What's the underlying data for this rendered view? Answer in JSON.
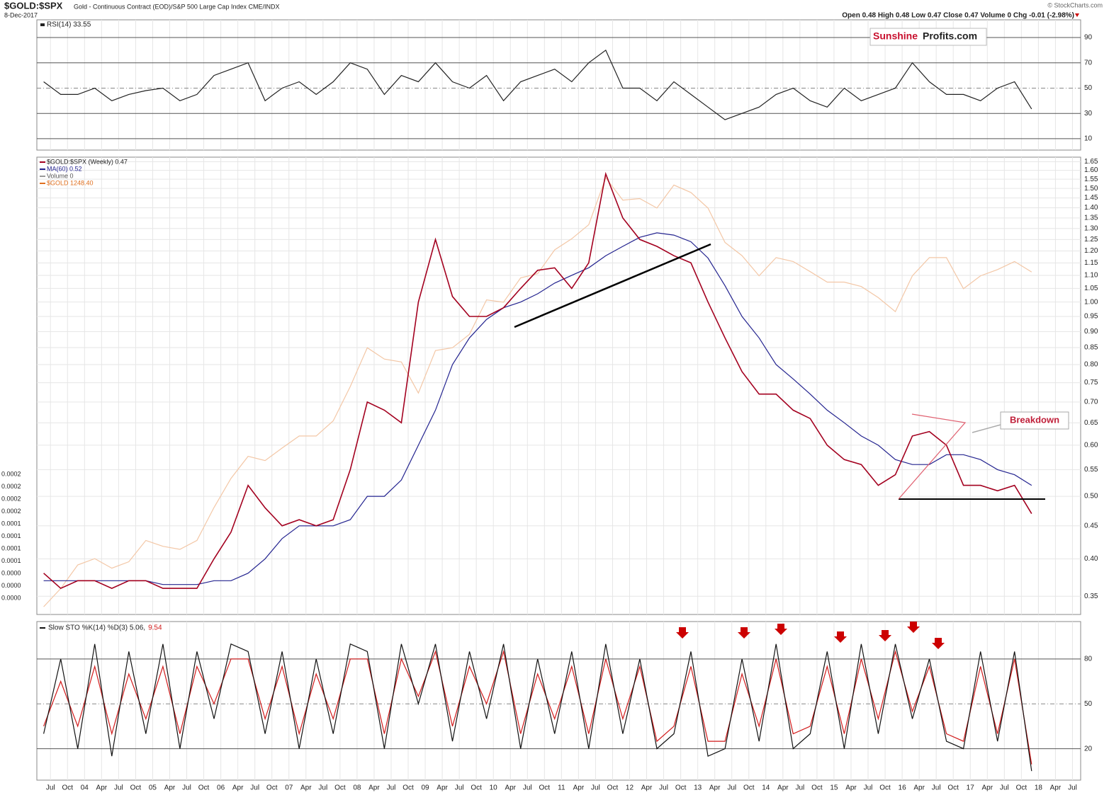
{
  "header": {
    "symbol": "$GOLD:$SPX",
    "description": "Gold - Continuous Contract (EOD)/S&P 500 Large Cap Index CME/INDX",
    "date": "8-Dec-2017",
    "quote": "Open 0.48 High 0.48 Low 0.47 Close 0.47 Volume 0 Chg -0.01 (-2.98%)",
    "credit": "© StockCharts.com",
    "logo": [
      "Sunshine",
      "Profits.com"
    ],
    "volume_scale_labels": [
      "0.0002",
      "0.0002",
      "0.0002",
      "0.0002",
      "0.0001",
      "0.0001",
      "0.0001",
      "0.0001",
      "0.0000",
      "0.0000",
      "0.0000"
    ]
  },
  "chart_data": [
    {
      "type": "line",
      "legend": "RSI(14) 33.55",
      "x": [
        2003.4,
        2003.65,
        2003.9,
        2004.15,
        2004.4,
        2004.65,
        2004.9,
        2005.15,
        2005.4,
        2005.65,
        2005.9,
        2006.15,
        2006.4,
        2006.65,
        2006.9,
        2007.15,
        2007.4,
        2007.65,
        2007.9,
        2008.15,
        2008.4,
        2008.65,
        2008.9,
        2009.15,
        2009.4,
        2009.65,
        2009.9,
        2010.15,
        2010.4,
        2010.65,
        2010.9,
        2011.15,
        2011.4,
        2011.65,
        2011.9,
        2012.15,
        2012.4,
        2012.65,
        2012.9,
        2013.15,
        2013.4,
        2013.65,
        2013.9,
        2014.15,
        2014.4,
        2014.65,
        2014.9,
        2015.15,
        2015.4,
        2015.65,
        2015.9,
        2016.15,
        2016.4,
        2016.65,
        2016.9,
        2017.15,
        2017.4,
        2017.65,
        2017.9
      ],
      "series": [
        {
          "color": "#222222",
          "values": [
            55,
            45,
            45,
            50,
            40,
            45,
            48,
            50,
            40,
            45,
            60,
            65,
            70,
            40,
            50,
            55,
            45,
            55,
            70,
            65,
            45,
            60,
            55,
            70,
            55,
            50,
            60,
            40,
            55,
            60,
            65,
            55,
            70,
            80,
            50,
            50,
            40,
            55,
            45,
            35,
            25,
            30,
            35,
            45,
            50,
            40,
            35,
            50,
            40,
            45,
            50,
            70,
            55,
            45,
            45,
            40,
            50,
            55,
            33.55
          ]
        }
      ],
      "ylim": [
        1,
        104
      ],
      "yticks": [
        10,
        30,
        50,
        70,
        90
      ]
    },
    {
      "type": "line",
      "ylog": true,
      "y2log": true,
      "legend_extra": "Volume 0",
      "x": [
        2003.4,
        2003.65,
        2003.9,
        2004.15,
        2004.4,
        2004.65,
        2004.9,
        2005.15,
        2005.4,
        2005.65,
        2005.9,
        2006.15,
        2006.4,
        2006.65,
        2006.9,
        2007.15,
        2007.4,
        2007.65,
        2007.9,
        2008.15,
        2008.4,
        2008.65,
        2008.9,
        2009.15,
        2009.4,
        2009.65,
        2009.9,
        2010.15,
        2010.4,
        2010.65,
        2010.9,
        2011.15,
        2011.4,
        2011.65,
        2011.9,
        2012.15,
        2012.4,
        2012.65,
        2012.9,
        2013.15,
        2013.4,
        2013.65,
        2013.9,
        2014.15,
        2014.4,
        2014.65,
        2014.9,
        2015.15,
        2015.4,
        2015.65,
        2015.9,
        2016.15,
        2016.4,
        2016.65,
        2016.9,
        2017.15,
        2017.4,
        2017.65,
        2017.9
      ],
      "series": [
        {
          "name": "$GOLD 1248.40",
          "color": "#f3c7a6",
          "axis": "y2",
          "values": [
            340,
            365,
            400,
            410,
            395,
            405,
            440,
            430,
            425,
            440,
            500,
            560,
            610,
            600,
            630,
            660,
            660,
            700,
            800,
            930,
            890,
            880,
            780,
            920,
            930,
            980,
            1120,
            1110,
            1220,
            1240,
            1360,
            1420,
            1500,
            1800,
            1650,
            1660,
            1600,
            1750,
            1700,
            1600,
            1400,
            1330,
            1230,
            1320,
            1300,
            1250,
            1200,
            1200,
            1180,
            1130,
            1070,
            1230,
            1320,
            1320,
            1170,
            1230,
            1260,
            1300,
            1248.4
          ]
        },
        {
          "name": "MA(60) 0.52",
          "color": "#23238f",
          "values": [
            0.37,
            0.37,
            0.37,
            0.37,
            0.37,
            0.37,
            0.37,
            0.365,
            0.365,
            0.365,
            0.37,
            0.37,
            0.38,
            0.4,
            0.43,
            0.45,
            0.45,
            0.45,
            0.46,
            0.5,
            0.5,
            0.53,
            0.6,
            0.68,
            0.8,
            0.88,
            0.94,
            0.98,
            1.0,
            1.03,
            1.07,
            1.1,
            1.13,
            1.18,
            1.22,
            1.26,
            1.28,
            1.27,
            1.24,
            1.17,
            1.06,
            0.95,
            0.88,
            0.8,
            0.76,
            0.72,
            0.68,
            0.65,
            0.62,
            0.6,
            0.57,
            0.56,
            0.56,
            0.58,
            0.58,
            0.57,
            0.55,
            0.54,
            0.52
          ]
        },
        {
          "name": "$GOLD:$SPX (Weekly) 0.47",
          "color": "#a3001f",
          "values": [
            0.38,
            0.36,
            0.37,
            0.37,
            0.36,
            0.37,
            0.37,
            0.36,
            0.36,
            0.36,
            0.4,
            0.44,
            0.52,
            0.48,
            0.45,
            0.46,
            0.45,
            0.46,
            0.55,
            0.7,
            0.68,
            0.65,
            1.0,
            1.25,
            1.02,
            0.95,
            0.95,
            0.98,
            1.05,
            1.12,
            1.13,
            1.05,
            1.15,
            1.58,
            1.35,
            1.25,
            1.22,
            1.18,
            1.15,
            1.0,
            0.88,
            0.78,
            0.72,
            0.72,
            0.68,
            0.66,
            0.6,
            0.57,
            0.56,
            0.52,
            0.54,
            0.62,
            0.63,
            0.6,
            0.52,
            0.52,
            0.51,
            0.52,
            0.47
          ]
        }
      ],
      "ylim": [
        0.328,
        1.677
      ],
      "y2lim": [
        330,
        1950
      ],
      "yticks": [
        {
          "value": 0.35,
          "label": "0.35"
        },
        {
          "value": 0.4,
          "label": "0.40"
        },
        {
          "value": 0.45,
          "label": "0.45"
        },
        {
          "value": 0.5,
          "label": "0.50"
        },
        {
          "value": 0.55,
          "label": "0.55"
        },
        {
          "value": 0.6,
          "label": "0.60"
        },
        {
          "value": 0.65,
          "label": "0.65"
        },
        {
          "value": 0.7,
          "label": "0.70"
        },
        {
          "value": 0.75,
          "label": "0.75"
        },
        {
          "value": 0.8,
          "label": "0.80"
        },
        {
          "value": 0.85,
          "label": "0.85"
        },
        {
          "value": 0.9,
          "label": "0.90"
        },
        {
          "value": 0.95,
          "label": "0.95"
        },
        {
          "value": 1,
          "label": "1.00"
        },
        {
          "value": 1.05,
          "label": "1.05"
        },
        {
          "value": 1.1,
          "label": "1.10"
        },
        {
          "value": 1.15,
          "label": "1.15"
        },
        {
          "value": 1.2,
          "label": "1.20"
        },
        {
          "value": 1.25,
          "label": "1.25"
        },
        {
          "value": 1.3,
          "label": "1.30"
        },
        {
          "value": 1.35,
          "label": "1.35"
        },
        {
          "value": 1.4,
          "label": "1.40"
        },
        {
          "value": 1.45,
          "label": "1.45"
        },
        {
          "value": 1.5,
          "label": "1.50"
        },
        {
          "value": 1.55,
          "label": "1.55"
        },
        {
          "value": 1.6,
          "label": "1.60"
        },
        {
          "value": 1.65,
          "label": "1.65"
        }
      ],
      "annotation": "Breakdown"
    },
    {
      "type": "line",
      "legend": [
        "Slow STO %K(14) %D(3) 5.06,",
        "9.54"
      ],
      "x": [
        2003.4,
        2003.65,
        2003.9,
        2004.15,
        2004.4,
        2004.65,
        2004.9,
        2005.15,
        2005.4,
        2005.65,
        2005.9,
        2006.15,
        2006.4,
        2006.65,
        2006.9,
        2007.15,
        2007.4,
        2007.65,
        2007.9,
        2008.15,
        2008.4,
        2008.65,
        2008.9,
        2009.15,
        2009.4,
        2009.65,
        2009.9,
        2010.15,
        2010.4,
        2010.65,
        2010.9,
        2011.15,
        2011.4,
        2011.65,
        2011.9,
        2012.15,
        2012.4,
        2012.65,
        2012.9,
        2013.15,
        2013.4,
        2013.65,
        2013.9,
        2014.15,
        2014.4,
        2014.65,
        2014.9,
        2015.15,
        2015.4,
        2015.65,
        2015.9,
        2016.15,
        2016.4,
        2016.65,
        2016.9,
        2017.15,
        2017.4,
        2017.65,
        2017.9
      ],
      "series": [
        {
          "color": "#d11a1a",
          "values": [
            35,
            65,
            35,
            75,
            30,
            70,
            40,
            75,
            30,
            75,
            50,
            80,
            80,
            40,
            75,
            30,
            70,
            40,
            80,
            80,
            30,
            80,
            55,
            85,
            35,
            75,
            50,
            85,
            30,
            70,
            40,
            75,
            30,
            80,
            40,
            75,
            25,
            35,
            75,
            25,
            25,
            70,
            35,
            80,
            30,
            35,
            75,
            30,
            80,
            40,
            85,
            45,
            75,
            30,
            25,
            75,
            30,
            80,
            9.54
          ]
        },
        {
          "color": "#111111",
          "values": [
            30,
            80,
            20,
            90,
            15,
            85,
            30,
            90,
            20,
            85,
            40,
            90,
            85,
            30,
            85,
            20,
            80,
            30,
            90,
            85,
            20,
            90,
            50,
            90,
            25,
            85,
            40,
            90,
            20,
            80,
            30,
            85,
            20,
            90,
            30,
            80,
            20,
            30,
            85,
            15,
            20,
            80,
            25,
            90,
            20,
            30,
            85,
            20,
            90,
            30,
            90,
            40,
            80,
            25,
            20,
            85,
            25,
            85,
            5.06
          ]
        }
      ],
      "ylim": [
        -1,
        105
      ],
      "yticks": [
        20,
        50,
        80
      ],
      "xlim": [
        2003.3,
        2018.62
      ],
      "xticks": [
        {
          "value": 2003.5,
          "label": "Jul"
        },
        {
          "value": 2003.75,
          "label": "Oct"
        },
        {
          "value": 2004,
          "label": "04"
        },
        {
          "value": 2004.25,
          "label": "Apr"
        },
        {
          "value": 2004.5,
          "label": "Jul"
        },
        {
          "value": 2004.75,
          "label": "Oct"
        },
        {
          "value": 2005,
          "label": "05"
        },
        {
          "value": 2005.25,
          "label": "Apr"
        },
        {
          "value": 2005.5,
          "label": "Jul"
        },
        {
          "value": 2005.75,
          "label": "Oct"
        },
        {
          "value": 2006,
          "label": "06"
        },
        {
          "value": 2006.25,
          "label": "Apr"
        },
        {
          "value": 2006.5,
          "label": "Jul"
        },
        {
          "value": 2006.75,
          "label": "Oct"
        },
        {
          "value": 2007,
          "label": "07"
        },
        {
          "value": 2007.25,
          "label": "Apr"
        },
        {
          "value": 2007.5,
          "label": "Jul"
        },
        {
          "value": 2007.75,
          "label": "Oct"
        },
        {
          "value": 2008,
          "label": "08"
        },
        {
          "value": 2008.25,
          "label": "Apr"
        },
        {
          "value": 2008.5,
          "label": "Jul"
        },
        {
          "value": 2008.75,
          "label": "Oct"
        },
        {
          "value": 2009,
          "label": "09"
        },
        {
          "value": 2009.25,
          "label": "Apr"
        },
        {
          "value": 2009.5,
          "label": "Jul"
        },
        {
          "value": 2009.75,
          "label": "Oct"
        },
        {
          "value": 2010,
          "label": "10"
        },
        {
          "value": 2010.25,
          "label": "Apr"
        },
        {
          "value": 2010.5,
          "label": "Jul"
        },
        {
          "value": 2010.75,
          "label": "Oct"
        },
        {
          "value": 2011,
          "label": "11"
        },
        {
          "value": 2011.25,
          "label": "Apr"
        },
        {
          "value": 2011.5,
          "label": "Jul"
        },
        {
          "value": 2011.75,
          "label": "Oct"
        },
        {
          "value": 2012,
          "label": "12"
        },
        {
          "value": 2012.25,
          "label": "Apr"
        },
        {
          "value": 2012.5,
          "label": "Jul"
        },
        {
          "value": 2012.75,
          "label": "Oct"
        },
        {
          "value": 2013,
          "label": "13"
        },
        {
          "value": 2013.25,
          "label": "Apr"
        },
        {
          "value": 2013.5,
          "label": "Jul"
        },
        {
          "value": 2013.75,
          "label": "Oct"
        },
        {
          "value": 2014,
          "label": "14"
        },
        {
          "value": 2014.25,
          "label": "Apr"
        },
        {
          "value": 2014.5,
          "label": "Jul"
        },
        {
          "value": 2014.75,
          "label": "Oct"
        },
        {
          "value": 2015,
          "label": "15"
        },
        {
          "value": 2015.25,
          "label": "Apr"
        },
        {
          "value": 2015.5,
          "label": "Jul"
        },
        {
          "value": 2015.75,
          "label": "Oct"
        },
        {
          "value": 2016,
          "label": "16"
        },
        {
          "value": 2016.25,
          "label": "Apr"
        },
        {
          "value": 2016.5,
          "label": "Jul"
        },
        {
          "value": 2016.75,
          "label": "Oct"
        },
        {
          "value": 2017,
          "label": "17"
        },
        {
          "value": 2017.25,
          "label": "Apr"
        },
        {
          "value": 2017.5,
          "label": "Jul"
        },
        {
          "value": 2017.75,
          "label": "Oct"
        },
        {
          "value": 2018,
          "label": "18"
        },
        {
          "value": 2018.25,
          "label": "Apr"
        },
        {
          "value": 2018.5,
          "label": "Jul"
        }
      ]
    }
  ]
}
